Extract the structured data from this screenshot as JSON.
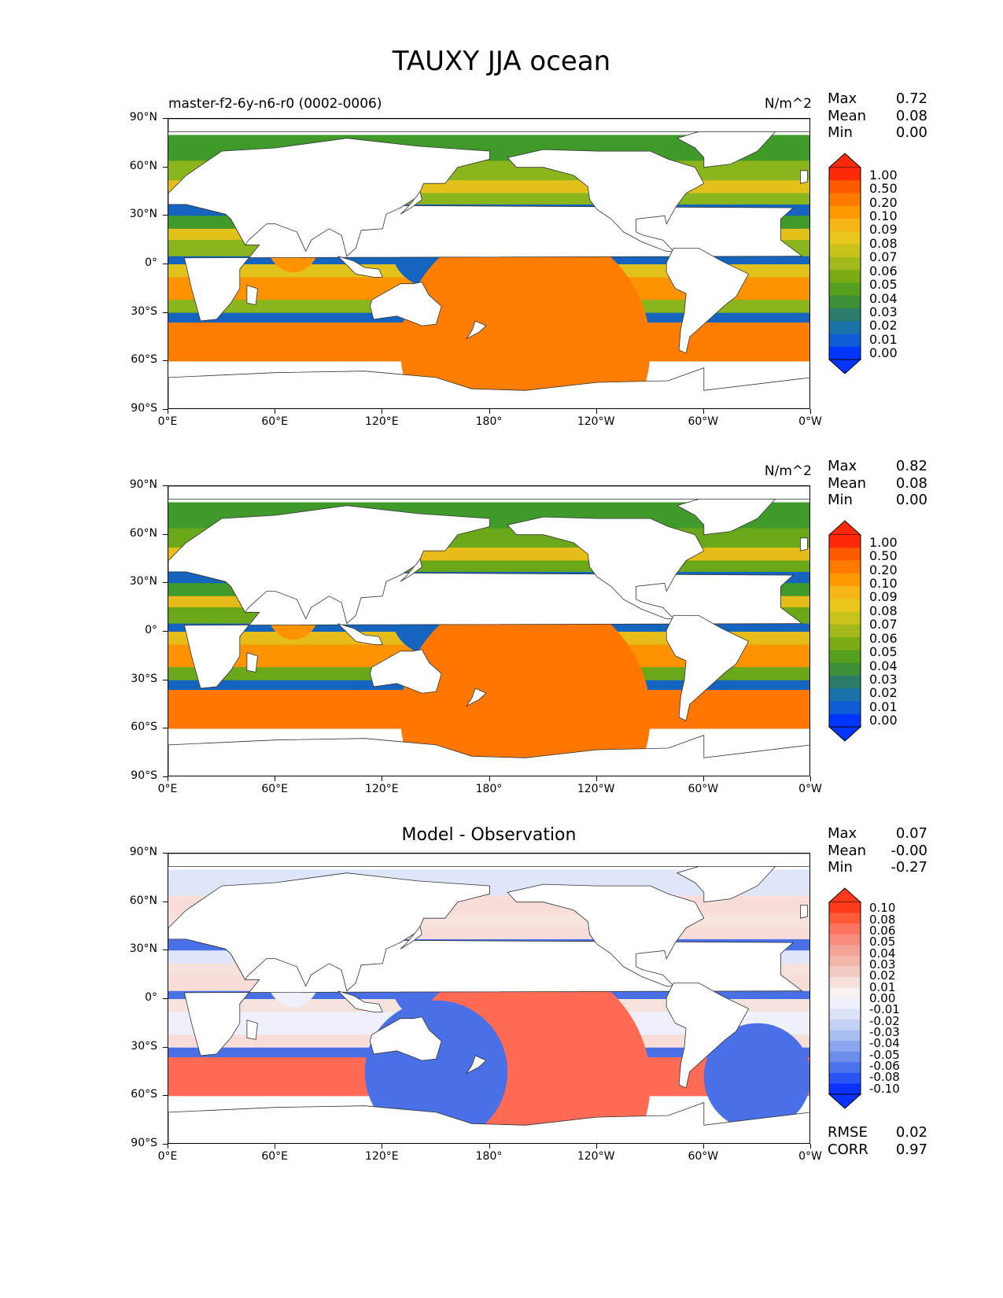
{
  "title": "TAUXY JJA ocean",
  "axes": {
    "y_ticks": [
      "90°N",
      "60°N",
      "30°N",
      "0°",
      "30°S",
      "60°S",
      "90°S"
    ],
    "x_ticks": [
      "0°E",
      "60°E",
      "120°E",
      "180°",
      "120°W",
      "60°W",
      "0°W"
    ]
  },
  "panels": [
    {
      "subtitle_left": "master-f2-6y-n6-r0 (0002-0006)",
      "title": "",
      "units": "N/m^2",
      "stats": [
        {
          "label": "Max",
          "value": "0.72"
        },
        {
          "label": "Mean",
          "value": "0.08"
        },
        {
          "label": "Min",
          "value": "0.00"
        }
      ],
      "extra_stats": [],
      "colorbar": {
        "labels": [
          "1.00",
          "0.50",
          "0.20",
          "0.10",
          "0.09",
          "0.08",
          "0.07",
          "0.06",
          "0.05",
          "0.04",
          "0.03",
          "0.02",
          "0.01",
          "0.00"
        ],
        "colors": [
          "#ff2a0a",
          "#ff5a00",
          "#ff7b00",
          "#ff9900",
          "#f7b617",
          "#e9c61c",
          "#c8c31a",
          "#a3b81a",
          "#7aaa14",
          "#55a01c",
          "#3d8f38",
          "#2b7d6a",
          "#1a73a8",
          "#0d5ed6",
          "#0035ff"
        ],
        "top_color": "#ff2a0a",
        "bottom_color": "#0035ff"
      },
      "palette": {
        "land": "#ffffff",
        "tropics": "#ff9400",
        "southern": "#ff7d00",
        "midlat": "#8bb51c",
        "calm": "#1565c0",
        "subtropic": "#e2c21a",
        "green": "#3f9a2a"
      }
    },
    {
      "subtitle_left": "",
      "title": "",
      "units": "N/m^2",
      "stats": [
        {
          "label": "Max",
          "value": "0.82"
        },
        {
          "label": "Mean",
          "value": "0.08"
        },
        {
          "label": "Min",
          "value": "0.00"
        }
      ],
      "extra_stats": [],
      "colorbar": {
        "labels": [
          "1.00",
          "0.50",
          "0.20",
          "0.10",
          "0.09",
          "0.08",
          "0.07",
          "0.06",
          "0.05",
          "0.04",
          "0.03",
          "0.02",
          "0.01",
          "0.00"
        ],
        "colors": [
          "#ff2a0a",
          "#ff5a00",
          "#ff7b00",
          "#ff9900",
          "#f7b617",
          "#e9c61c",
          "#c8c31a",
          "#a3b81a",
          "#7aaa14",
          "#55a01c",
          "#3d8f38",
          "#2b7d6a",
          "#1a73a8",
          "#0d5ed6",
          "#0035ff"
        ],
        "top_color": "#ff2a0a",
        "bottom_color": "#0035ff"
      },
      "palette": {
        "land": "#ffffff",
        "tropics": "#ff9400",
        "southern": "#ff7600",
        "midlat": "#6aa81a",
        "calm": "#1565c0",
        "subtropic": "#e6bd18",
        "green": "#3f9a2a"
      }
    },
    {
      "subtitle_left": "",
      "title": "Model - Observation",
      "units": "",
      "stats": [
        {
          "label": "Max",
          "value": "0.07"
        },
        {
          "label": "Mean",
          "value": "-0.00"
        },
        {
          "label": "Min",
          "value": "-0.27"
        }
      ],
      "extra_stats": [
        {
          "label": "RMSE",
          "value": "0.02"
        },
        {
          "label": "CORR",
          "value": "0.97"
        }
      ],
      "colorbar": {
        "labels": [
          "0.10",
          "0.08",
          "0.06",
          "0.05",
          "0.04",
          "0.03",
          "0.02",
          "0.01",
          "0.00",
          "-0.01",
          "-0.02",
          "-0.03",
          "-0.04",
          "-0.05",
          "-0.06",
          "-0.08",
          "-0.10"
        ],
        "colors": [
          "#ff3a1a",
          "#ff5a3a",
          "#fa7460",
          "#f78b7c",
          "#f4a295",
          "#f2b6ab",
          "#f4cbc3",
          "#f6e0db",
          "#f7f1ef",
          "#eef1fb",
          "#dbe3f8",
          "#c4d1f4",
          "#a8bdf0",
          "#8aa6ec",
          "#6b8eea",
          "#4b73ee",
          "#2a55f5",
          "#0a33ff"
        ],
        "top_color": "#ff3a1a",
        "bottom_color": "#0a33ff"
      },
      "palette": {
        "land": "#ffffff",
        "tropics": "#eef1fb",
        "southern": "#ff6a55",
        "midlat": "#f8ddd8",
        "calm": "#4a70e8",
        "subtropic": "#f6e3de",
        "green": "#dfe6fa"
      }
    }
  ]
}
